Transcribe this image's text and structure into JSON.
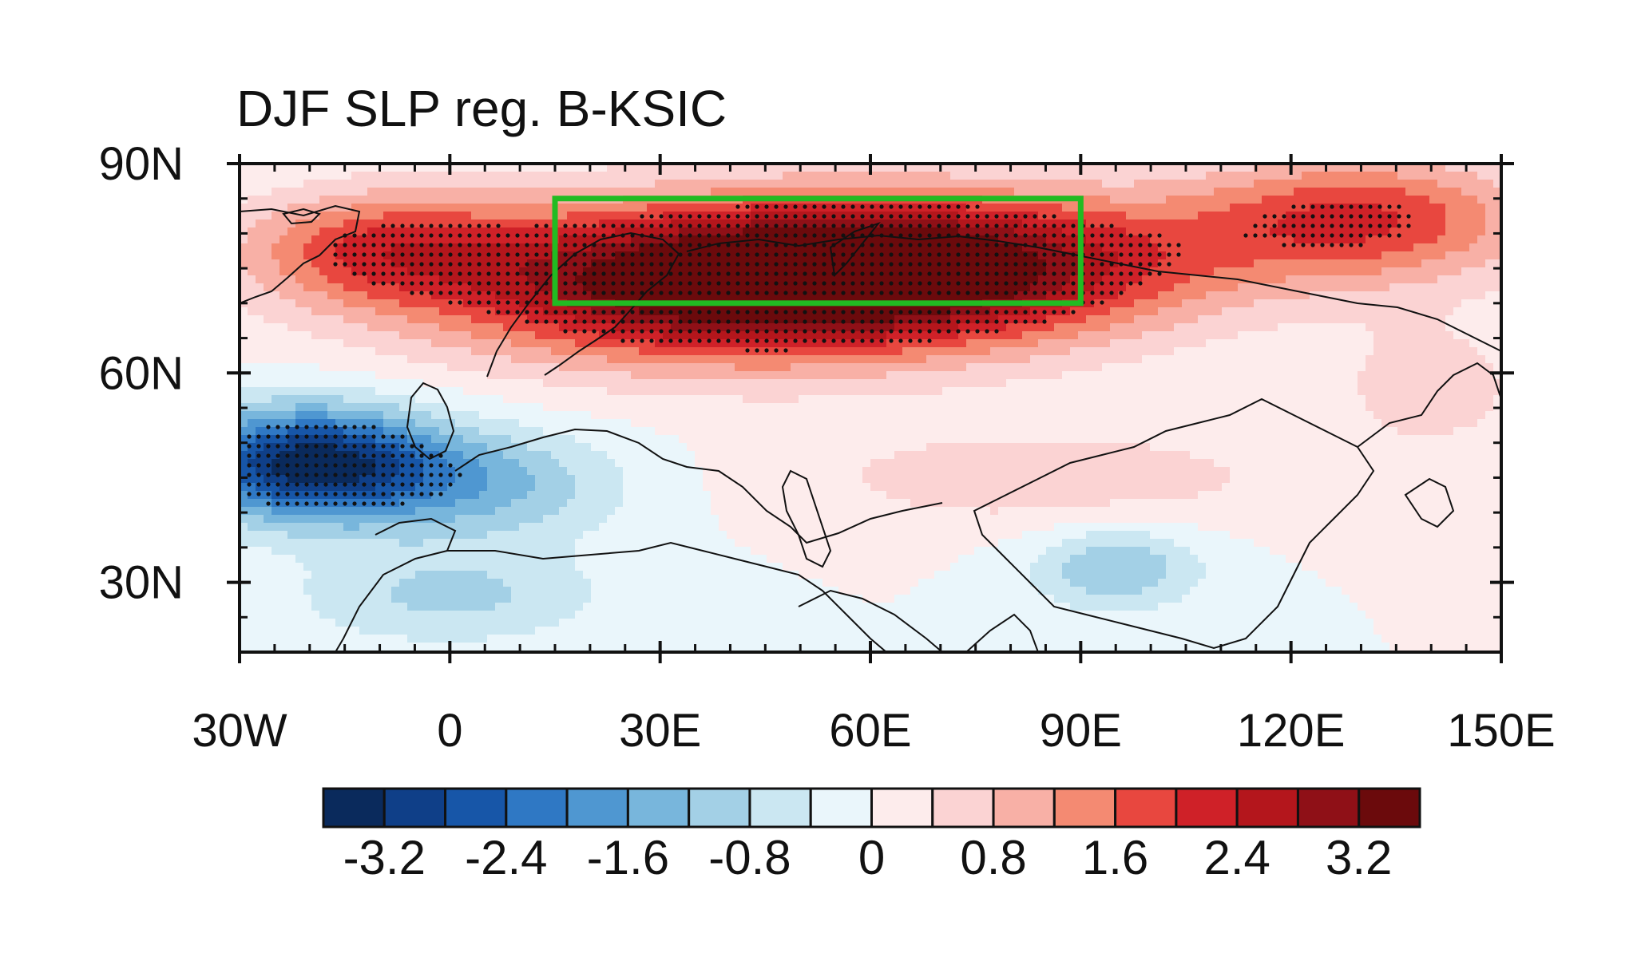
{
  "title": "DJF SLP reg. B-KSIC",
  "map": {
    "lon_range": [
      -30,
      150
    ],
    "lat_range": [
      20,
      90
    ],
    "lon_ticks": [
      {
        "value": -30,
        "label": "30W"
      },
      {
        "value": 0,
        "label": "0"
      },
      {
        "value": 30,
        "label": "30E"
      },
      {
        "value": 60,
        "label": "60E"
      },
      {
        "value": 90,
        "label": "90E"
      },
      {
        "value": 120,
        "label": "120E"
      },
      {
        "value": 150,
        "label": "150E"
      }
    ],
    "lat_ticks": [
      {
        "value": 30,
        "label": "30N"
      },
      {
        "value": 60,
        "label": "60N"
      },
      {
        "value": 90,
        "label": "90N"
      }
    ],
    "box": {
      "lon_min": 15,
      "lon_max": 90,
      "lat_min": 70,
      "lat_max": 85,
      "color": "#22bb22"
    },
    "stipple_color": "#111111",
    "coast_color": "#111111"
  },
  "colorbar": {
    "levels": [
      -3.6,
      -3.2,
      -2.8,
      -2.4,
      -2.0,
      -1.6,
      -1.2,
      -0.8,
      -0.4,
      0,
      0.4,
      0.8,
      1.2,
      1.6,
      2.0,
      2.4,
      2.8,
      3.2,
      3.6
    ],
    "colors": [
      "#0a2a5c",
      "#0f3f88",
      "#1756a8",
      "#2f78c4",
      "#4f97d1",
      "#78b6dc",
      "#a3d0e6",
      "#cbe7f2",
      "#eaf6fb",
      "#fdecec",
      "#fbd3d3",
      "#f8b0a6",
      "#f48a72",
      "#e8473f",
      "#cf2128",
      "#b4161c",
      "#8f1017",
      "#6b0a0c"
    ],
    "labels": [
      "-3.2",
      "-2.4",
      "-1.6",
      "-0.8",
      "0",
      "0.8",
      "1.6",
      "2.4",
      "3.2"
    ]
  },
  "field": {
    "description_units": "hPa",
    "centers": [
      {
        "lon": 40,
        "lat": 73,
        "amp": 3.8,
        "slon": 42,
        "slat": 11
      },
      {
        "lon": 75,
        "lat": 76,
        "amp": 2.2,
        "slon": 35,
        "slat": 10
      },
      {
        "lon": 130,
        "lat": 82,
        "amp": 2.0,
        "slon": 25,
        "slat": 9
      },
      {
        "lon": -10,
        "lat": 78,
        "amp": 1.6,
        "slon": 20,
        "slat": 8
      },
      {
        "lon": -20,
        "lat": 47,
        "amp": -3.4,
        "slon": 18,
        "slat": 8
      },
      {
        "lon": 5,
        "lat": 44,
        "amp": -1.2,
        "slon": 20,
        "slat": 8
      },
      {
        "lon": 95,
        "lat": 32,
        "amp": -1.2,
        "slon": 12,
        "slat": 6
      },
      {
        "lon": 0,
        "lat": 28,
        "amp": -0.9,
        "slon": 22,
        "slat": 7
      },
      {
        "lon": 85,
        "lat": 45,
        "amp": 0.7,
        "slon": 35,
        "slat": 7
      },
      {
        "lon": 140,
        "lat": 58,
        "amp": 0.6,
        "slon": 15,
        "slat": 10
      }
    ]
  }
}
